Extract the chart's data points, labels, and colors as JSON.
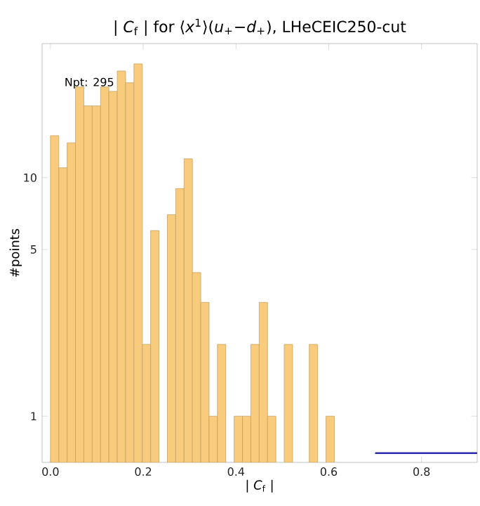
{
  "chart_data": {
    "type": "histogram",
    "title": "| *C*$_{f}$ | for ⟨*x*$^{1}$⟩(*u*$_{+}$−*d*$_{+}$), LHeCEIC250-cut",
    "xlabel": "| *C*$_{f}$ |",
    "ylabel": "#points",
    "annotations": [
      "Npt: 295"
    ],
    "log": "y",
    "xlim": [
      -0.018,
      0.92
    ],
    "ylim": [
      0.64,
      36.5
    ],
    "xticks": [
      {
        "value": 0,
        "label": "0.0"
      },
      0.2,
      0.4,
      0.6,
      0.8
    ],
    "yticks": [
      1,
      5,
      10
    ],
    "series": [
      {
        "type": "histogram",
        "color": "#f9cb7c",
        "bins": [
          0,
          0.018,
          0.036,
          0.054,
          0.072,
          0.09,
          0.108,
          0.126,
          0.144,
          0.162,
          0.18,
          0.198,
          0.216,
          0.234,
          0.252,
          0.27,
          0.288,
          0.306,
          0.324,
          0.342,
          0.36,
          0.378,
          0.396,
          0.414,
          0.432,
          0.45,
          0.468,
          0.486,
          0.504,
          0.522,
          0.54,
          0.558,
          0.576,
          0.594,
          0.612
        ],
        "values": [
          15,
          11,
          14,
          24,
          20,
          20,
          24,
          23,
          28,
          25,
          30,
          2,
          6,
          null,
          7,
          9,
          12,
          4,
          3,
          1,
          2,
          null,
          1,
          1,
          2,
          3,
          1,
          null,
          2,
          null,
          null,
          2,
          null,
          1
        ]
      },
      {
        "type": "line",
        "color": "#2b2bb0",
        "x": [
          0.7,
          0.92
        ],
        "values": [
          0.7,
          0.7
        ]
      }
    ]
  }
}
